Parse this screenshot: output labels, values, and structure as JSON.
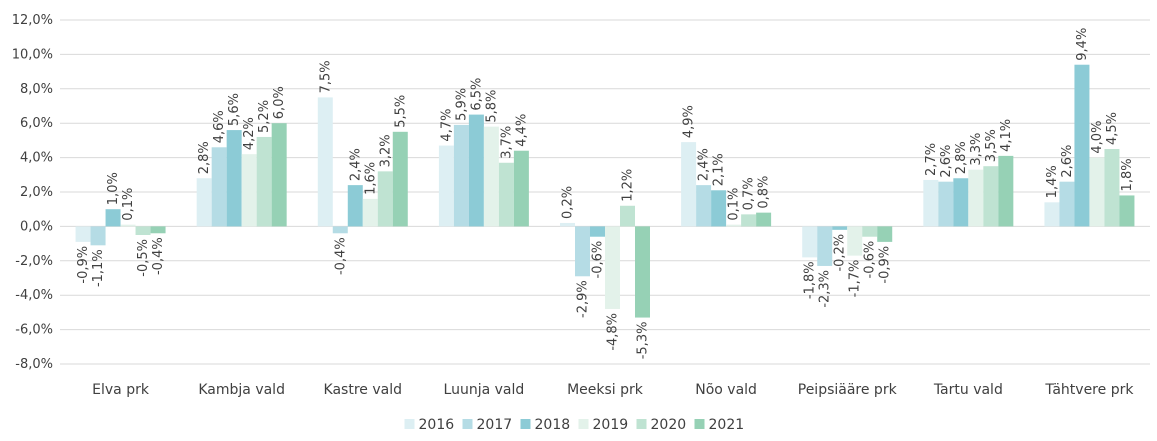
{
  "chart_data": {
    "type": "bar",
    "title": "",
    "xlabel": "",
    "ylabel": "",
    "ylim": [
      -8,
      12
    ],
    "y_ticks": [
      "-8,0%",
      "-6,0%",
      "-4,0%",
      "-2,0%",
      "0,0%",
      "2,0%",
      "4,0%",
      "6,0%",
      "8,0%",
      "10,0%",
      "12,0%"
    ],
    "grid": true,
    "legend_position": "bottom",
    "categories": [
      "Elva prk",
      "Kambja vald",
      "Kastre vald",
      "Luunja vald",
      "Meeksi prk",
      "Nõo vald",
      "Peipsiääre prk",
      "Tartu vald",
      "Tähtvere prk"
    ],
    "series": [
      {
        "name": "2016",
        "color": "#ddeff3",
        "values": [
          -0.9,
          2.8,
          7.5,
          4.7,
          0.2,
          4.9,
          -1.8,
          2.7,
          1.4
        ],
        "labels": [
          "-0,9%",
          "2,8%",
          "7,5%",
          "4,7%",
          "0,2%",
          "4,9%",
          "-1,8%",
          "2,7%",
          "1,4%"
        ]
      },
      {
        "name": "2017",
        "color": "#b5dce5",
        "values": [
          -1.1,
          4.6,
          -0.4,
          5.9,
          -2.9,
          2.4,
          -2.3,
          2.6,
          2.6
        ],
        "labels": [
          "-1,1%",
          "4,6%",
          "-0,4%",
          "5,9%",
          "-2,9%",
          "2,4%",
          "-2,3%",
          "2,6%",
          "2,6%"
        ]
      },
      {
        "name": "2018",
        "color": "#8ccbd6",
        "values": [
          1.0,
          5.6,
          2.4,
          6.5,
          -0.6,
          2.1,
          -0.2,
          2.8,
          9.4
        ],
        "labels": [
          "1,0%",
          "5,6%",
          "2,4%",
          "6,5%",
          "-0,6%",
          "2,1%",
          "-0,2%",
          "2,8%",
          "9,4%"
        ]
      },
      {
        "name": "2019",
        "color": "#e3f2ea",
        "values": [
          0.1,
          4.2,
          1.6,
          5.8,
          -4.8,
          0.1,
          -1.7,
          3.3,
          4.0
        ],
        "labels": [
          "0,1%",
          "4,2%",
          "1,6%",
          "5,8%",
          "-4,8%",
          "0,1%",
          "-1,7%",
          "3,3%",
          "4,0%"
        ]
      },
      {
        "name": "2020",
        "color": "#bfe3d2",
        "values": [
          -0.5,
          5.2,
          3.2,
          3.7,
          1.2,
          0.7,
          -0.6,
          3.5,
          4.5
        ],
        "labels": [
          "-0,5%",
          "5,2%",
          "3,2%",
          "3,7%",
          "1,2%",
          "0,7%",
          "-0,6%",
          "3,5%",
          "4,5%"
        ]
      },
      {
        "name": "2021",
        "color": "#96d1b5",
        "values": [
          -0.4,
          6.0,
          5.5,
          4.4,
          -5.3,
          0.8,
          -0.9,
          4.1,
          1.8
        ],
        "labels": [
          "-0,4%",
          "6,0%",
          "5,5%",
          "4,4%",
          "-5,3%",
          "0,8%",
          "-0,9%",
          "4,1%",
          "1,8%"
        ]
      }
    ]
  }
}
